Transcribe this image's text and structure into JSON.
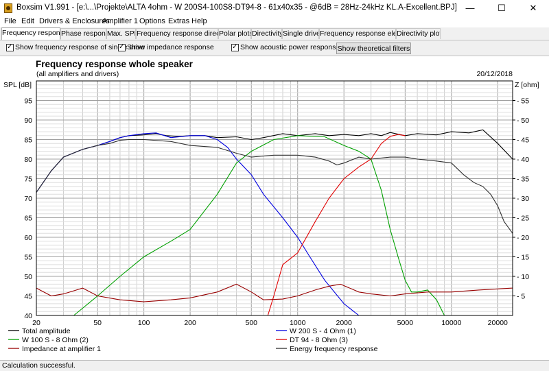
{
  "window": {
    "title": "Boxsim V1.991 - [e:\\...\\Projekte\\ALTA 4ohm - W 200S4-100S8-DT94-8 - 61x40x35 - @6dB = 28Hz-24kHz KL.A-Excellent.BPJ]",
    "minimize": "—",
    "maximize": "☐",
    "close": "✕"
  },
  "menu": [
    "File",
    "Edit",
    "Drivers & Enclosures",
    "Amplifier 1",
    "Options",
    "Extras",
    "Help"
  ],
  "tabs": [
    "Frequency response.",
    "Phase response",
    "Max. SPL",
    "Frequency response directions",
    "Polar plots",
    "Directivity",
    "Single driver",
    "Frequency response electr...",
    "Directivity plots"
  ],
  "toolbar": {
    "cb1": "Show frequency response of single drive",
    "cb2": "Show impedance response",
    "cb3": "Show acoustic power response",
    "button": "Show theoretical filters"
  },
  "status": "Calculation successful.",
  "chart_data": {
    "type": "line",
    "title": "Frequency response whole speaker",
    "subtitle": "(all amplifiers and drivers)",
    "date": "20/12/2018",
    "ylabel": "SPL [dB]",
    "y2label": "Z [ohm]",
    "xscale": "log",
    "xlim": [
      20,
      25000
    ],
    "ylim": [
      40,
      100
    ],
    "y2lim": [
      0,
      60
    ],
    "grid": true,
    "x_ticks": [
      20,
      50,
      100,
      200,
      500,
      1000,
      2000,
      5000,
      10000,
      20000
    ],
    "y_ticks": [
      40,
      45,
      50,
      55,
      60,
      65,
      70,
      75,
      80,
      85,
      90,
      95
    ],
    "y2_ticks": [
      5,
      10,
      15,
      20,
      25,
      30,
      35,
      40,
      45,
      50,
      55
    ],
    "legend_position": "bottom",
    "series": [
      {
        "name": "Total amplitude",
        "color": "#000000",
        "axis": "left",
        "points": [
          [
            20,
            71.5
          ],
          [
            25,
            77
          ],
          [
            30,
            80.5
          ],
          [
            40,
            82.5
          ],
          [
            50,
            83.5
          ],
          [
            60,
            84.5
          ],
          [
            70,
            85.5
          ],
          [
            80,
            86
          ],
          [
            100,
            86.2
          ],
          [
            120,
            86.5
          ],
          [
            140,
            86
          ],
          [
            170,
            85.8
          ],
          [
            200,
            86
          ],
          [
            250,
            86
          ],
          [
            300,
            85.5
          ],
          [
            400,
            85.7
          ],
          [
            500,
            85
          ],
          [
            600,
            85.5
          ],
          [
            800,
            86.5
          ],
          [
            1000,
            86
          ],
          [
            1300,
            86.5
          ],
          [
            1600,
            86
          ],
          [
            2000,
            86.3
          ],
          [
            2500,
            86
          ],
          [
            3000,
            86.5
          ],
          [
            3500,
            86
          ],
          [
            4000,
            86.8
          ],
          [
            5000,
            86
          ],
          [
            6000,
            86.5
          ],
          [
            8000,
            86.2
          ],
          [
            10000,
            87
          ],
          [
            13000,
            86.7
          ],
          [
            16000,
            87.5
          ],
          [
            20000,
            84
          ],
          [
            25000,
            80
          ]
        ]
      },
      {
        "name": "W 200 S - 4 Ohm (1)",
        "color": "#0000e0",
        "axis": "left",
        "points": [
          [
            20,
            71.5
          ],
          [
            25,
            77
          ],
          [
            30,
            80.5
          ],
          [
            40,
            82.5
          ],
          [
            50,
            83.5
          ],
          [
            60,
            84.5
          ],
          [
            70,
            85.5
          ],
          [
            80,
            86
          ],
          [
            100,
            86.5
          ],
          [
            120,
            86.7
          ],
          [
            150,
            85.5
          ],
          [
            200,
            86
          ],
          [
            250,
            86
          ],
          [
            300,
            85
          ],
          [
            350,
            83
          ],
          [
            400,
            80
          ],
          [
            500,
            76
          ],
          [
            600,
            71
          ],
          [
            800,
            65
          ],
          [
            1000,
            60
          ],
          [
            1200,
            55
          ],
          [
            1500,
            49
          ],
          [
            2000,
            43
          ],
          [
            2500,
            40
          ]
        ]
      },
      {
        "name": "W 100 S - 8 Ohm (2)",
        "color": "#00a000",
        "axis": "left",
        "points": [
          [
            35,
            40
          ],
          [
            50,
            45
          ],
          [
            70,
            50
          ],
          [
            100,
            55
          ],
          [
            150,
            59
          ],
          [
            200,
            62
          ],
          [
            300,
            71
          ],
          [
            400,
            79
          ],
          [
            500,
            82
          ],
          [
            700,
            85
          ],
          [
            1000,
            86
          ],
          [
            1500,
            85.7
          ],
          [
            2000,
            83.5
          ],
          [
            2500,
            82
          ],
          [
            3000,
            80
          ],
          [
            3500,
            72
          ],
          [
            4000,
            62
          ],
          [
            4500,
            55
          ],
          [
            5000,
            49
          ],
          [
            5500,
            46
          ],
          [
            6000,
            46
          ],
          [
            7000,
            46.5
          ],
          [
            8000,
            44
          ],
          [
            9000,
            40
          ]
        ]
      },
      {
        "name": "DT 94 - 8 Ohm (3)",
        "color": "#e00000",
        "axis": "left",
        "points": [
          [
            640,
            40
          ],
          [
            700,
            45
          ],
          [
            800,
            53
          ],
          [
            1000,
            56
          ],
          [
            1300,
            64
          ],
          [
            1600,
            70
          ],
          [
            2000,
            75
          ],
          [
            2500,
            78
          ],
          [
            3000,
            80
          ],
          [
            3500,
            84
          ],
          [
            4000,
            85.8
          ],
          [
            4500,
            86.3
          ],
          [
            5000,
            86
          ]
        ]
      },
      {
        "name": "Impedance at amplifier 1",
        "color": "#990000",
        "axis": "right",
        "points": [
          [
            20,
            7
          ],
          [
            25,
            5
          ],
          [
            30,
            5.5
          ],
          [
            40,
            7
          ],
          [
            50,
            5
          ],
          [
            70,
            4
          ],
          [
            100,
            3.5
          ],
          [
            150,
            4
          ],
          [
            200,
            4.5
          ],
          [
            300,
            6
          ],
          [
            400,
            8
          ],
          [
            500,
            6
          ],
          [
            600,
            4
          ],
          [
            800,
            4.2
          ],
          [
            1000,
            5
          ],
          [
            1300,
            6.5
          ],
          [
            1600,
            7.5
          ],
          [
            1900,
            8
          ],
          [
            2500,
            6
          ],
          [
            3000,
            5.5
          ],
          [
            4000,
            5
          ],
          [
            5000,
            5.5
          ],
          [
            7000,
            6
          ],
          [
            10000,
            6
          ],
          [
            15000,
            6.5
          ],
          [
            25000,
            7
          ]
        ]
      },
      {
        "name": "Energy frequency response",
        "color": "#303030",
        "axis": "left",
        "points": [
          [
            20,
            71.5
          ],
          [
            25,
            77
          ],
          [
            30,
            80.5
          ],
          [
            40,
            82.5
          ],
          [
            50,
            83.5
          ],
          [
            60,
            84
          ],
          [
            70,
            84.8
          ],
          [
            80,
            85
          ],
          [
            100,
            85
          ],
          [
            150,
            84.5
          ],
          [
            200,
            83.5
          ],
          [
            300,
            83
          ],
          [
            400,
            81.5
          ],
          [
            500,
            80.5
          ],
          [
            700,
            81
          ],
          [
            1000,
            81
          ],
          [
            1300,
            80.5
          ],
          [
            1600,
            79.5
          ],
          [
            1800,
            78.5
          ],
          [
            2000,
            79
          ],
          [
            2500,
            80.5
          ],
          [
            3000,
            80
          ],
          [
            4000,
            80.5
          ],
          [
            5000,
            80.5
          ],
          [
            6000,
            80
          ],
          [
            8000,
            79.5
          ],
          [
            10000,
            79
          ],
          [
            12000,
            76
          ],
          [
            14000,
            74
          ],
          [
            16000,
            73
          ],
          [
            18000,
            71
          ],
          [
            20000,
            68
          ],
          [
            22000,
            64
          ],
          [
            25000,
            61
          ]
        ]
      }
    ]
  }
}
